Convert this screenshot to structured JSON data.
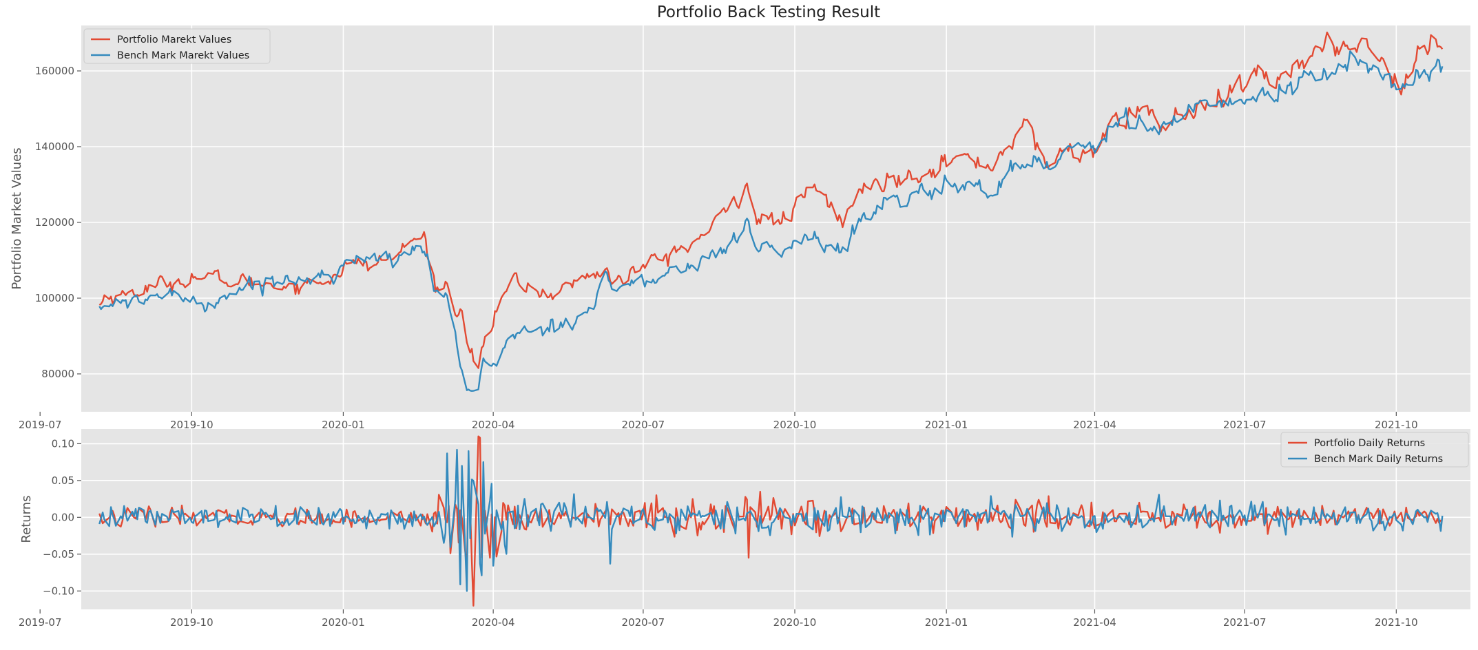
{
  "chart_data": [
    {
      "type": "line",
      "title": "Portfolio Back Testing Result",
      "xlabel": "",
      "ylabel": "Portfolio Market Values",
      "x_range": [
        "2019-08-06",
        "2021-10-29"
      ],
      "ylim": [
        70000,
        172000
      ],
      "x_ticks": [
        "2019-07",
        "2019-10",
        "2020-01",
        "2020-04",
        "2020-07",
        "2020-10",
        "2021-01",
        "2021-04",
        "2021-07",
        "2021-10"
      ],
      "y_ticks": [
        80000,
        100000,
        120000,
        140000,
        160000
      ],
      "grid": true,
      "legend_position": "top-left",
      "colors": [
        "#E24A33",
        "#348ABD"
      ],
      "series": [
        {
          "name": "Portfolio Marekt Values",
          "keypoints": [
            [
              "2019-08-06",
              98000
            ],
            [
              "2019-08-10",
              101000
            ],
            [
              "2019-08-20",
              100500
            ],
            [
              "2019-09-01",
              102500
            ],
            [
              "2019-09-15",
              103500
            ],
            [
              "2019-10-01",
              106000
            ],
            [
              "2019-10-20",
              104500
            ],
            [
              "2019-11-10",
              104000
            ],
            [
              "2019-12-01",
              103500
            ],
            [
              "2019-12-20",
              104500
            ],
            [
              "2020-01-02",
              108500
            ],
            [
              "2020-01-20",
              109000
            ],
            [
              "2020-02-01",
              111000
            ],
            [
              "2020-02-12",
              115000
            ],
            [
              "2020-02-19",
              116500
            ],
            [
              "2020-02-25",
              104000
            ],
            [
              "2020-03-05",
              103000
            ],
            [
              "2020-03-09",
              95000
            ],
            [
              "2020-03-13",
              99000
            ],
            [
              "2020-03-16",
              90000
            ],
            [
              "2020-03-20",
              84000
            ],
            [
              "2020-03-23",
              82000
            ],
            [
              "2020-03-27",
              90000
            ],
            [
              "2020-04-01",
              93000
            ],
            [
              "2020-04-05",
              99000
            ],
            [
              "2020-04-15",
              105000
            ],
            [
              "2020-04-25",
              102000
            ],
            [
              "2020-05-05",
              101000
            ],
            [
              "2020-05-20",
              104000
            ],
            [
              "2020-06-08",
              108000
            ],
            [
              "2020-06-12",
              104000
            ],
            [
              "2020-06-25",
              107000
            ],
            [
              "2020-07-10",
              110000
            ],
            [
              "2020-07-25",
              113000
            ],
            [
              "2020-08-05",
              116000
            ],
            [
              "2020-08-20",
              122000
            ],
            [
              "2020-09-02",
              131000
            ],
            [
              "2020-09-08",
              121000
            ],
            [
              "2020-09-23",
              120000
            ],
            [
              "2020-10-02",
              124000
            ],
            [
              "2020-10-12",
              129000
            ],
            [
              "2020-10-20",
              126000
            ],
            [
              "2020-10-30",
              120000
            ],
            [
              "2020-11-09",
              128000
            ],
            [
              "2020-11-25",
              131000
            ],
            [
              "2020-12-10",
              133000
            ],
            [
              "2021-01-05",
              137000
            ],
            [
              "2021-01-27",
              135000
            ],
            [
              "2021-02-10",
              142000
            ],
            [
              "2021-02-16",
              146000
            ],
            [
              "2021-03-04",
              135000
            ],
            [
              "2021-03-15",
              139000
            ],
            [
              "2021-03-25",
              138000
            ],
            [
              "2021-04-10",
              144000
            ],
            [
              "2021-04-30",
              151000
            ],
            [
              "2021-05-12",
              145000
            ],
            [
              "2021-05-25",
              149000
            ],
            [
              "2021-06-10",
              150000
            ],
            [
              "2021-06-25",
              154000
            ],
            [
              "2021-07-10",
              159000
            ],
            [
              "2021-07-19",
              156000
            ],
            [
              "2021-08-01",
              163000
            ],
            [
              "2021-08-15",
              164000
            ],
            [
              "2021-09-02",
              168000
            ],
            [
              "2021-09-15",
              167000
            ],
            [
              "2021-09-30",
              158000
            ],
            [
              "2021-10-04",
              157000
            ],
            [
              "2021-10-15",
              164000
            ],
            [
              "2021-10-29",
              168500
            ]
          ]
        },
        {
          "name": "Bench Mark Marekt Values",
          "keypoints": [
            [
              "2019-08-06",
              97000
            ],
            [
              "2019-08-12",
              99000
            ],
            [
              "2019-08-25",
              98000
            ],
            [
              "2019-09-10",
              101000
            ],
            [
              "2019-10-01",
              100000
            ],
            [
              "2019-10-08",
              98000
            ],
            [
              "2019-10-25",
              101500
            ],
            [
              "2019-11-15",
              104500
            ],
            [
              "2019-12-05",
              105000
            ],
            [
              "2019-12-25",
              107000
            ],
            [
              "2020-01-02",
              109000
            ],
            [
              "2020-01-20",
              110000
            ],
            [
              "2020-02-01",
              110500
            ],
            [
              "2020-02-12",
              113500
            ],
            [
              "2020-02-19",
              114000
            ],
            [
              "2020-02-25",
              102000
            ],
            [
              "2020-03-03",
              101000
            ],
            [
              "2020-03-09",
              90000
            ],
            [
              "2020-03-12",
              83000
            ],
            [
              "2020-03-16",
              77000
            ],
            [
              "2020-03-20",
              75500
            ],
            [
              "2020-03-23",
              75000
            ],
            [
              "2020-03-26",
              83000
            ],
            [
              "2020-04-01",
              81500
            ],
            [
              "2020-04-09",
              89000
            ],
            [
              "2020-04-20",
              91000
            ],
            [
              "2020-05-01",
              92000
            ],
            [
              "2020-05-15",
              94000
            ],
            [
              "2020-06-01",
              98000
            ],
            [
              "2020-06-08",
              107000
            ],
            [
              "2020-06-12",
              103000
            ],
            [
              "2020-06-26",
              103500
            ],
            [
              "2020-07-15",
              106000
            ],
            [
              "2020-08-01",
              109000
            ],
            [
              "2020-08-20",
              113000
            ],
            [
              "2020-09-02",
              119000
            ],
            [
              "2020-09-10",
              113000
            ],
            [
              "2020-09-23",
              112000
            ],
            [
              "2020-10-09",
              117000
            ],
            [
              "2020-10-28",
              113000
            ],
            [
              "2020-11-02",
              112500
            ],
            [
              "2020-11-09",
              120000
            ],
            [
              "2020-11-30",
              126000
            ],
            [
              "2020-12-20",
              128000
            ],
            [
              "2021-01-15",
              130000
            ],
            [
              "2021-01-29",
              128000
            ],
            [
              "2021-02-12",
              136000
            ],
            [
              "2021-03-04",
              135000
            ],
            [
              "2021-03-15",
              139000
            ],
            [
              "2021-04-01",
              142000
            ],
            [
              "2021-04-20",
              147000
            ],
            [
              "2021-05-12",
              145000
            ],
            [
              "2021-06-01",
              149000
            ],
            [
              "2021-06-20",
              151000
            ],
            [
              "2021-07-10",
              155000
            ],
            [
              "2021-07-19",
              152000
            ],
            [
              "2021-08-01",
              157000
            ],
            [
              "2021-08-20",
              159000
            ],
            [
              "2021-09-02",
              163000
            ],
            [
              "2021-09-20",
              159000
            ],
            [
              "2021-09-30",
              156000
            ],
            [
              "2021-10-04",
              155000
            ],
            [
              "2021-10-15",
              159000
            ],
            [
              "2021-10-29",
              162500
            ]
          ]
        }
      ]
    },
    {
      "type": "line",
      "title": "",
      "xlabel": "",
      "ylabel": "Returns",
      "x_range": [
        "2019-08-06",
        "2021-10-29"
      ],
      "ylim": [
        -0.125,
        0.12
      ],
      "x_ticks": [
        "2019-07",
        "2019-10",
        "2020-01",
        "2020-04",
        "2020-07",
        "2020-10",
        "2021-01",
        "2021-04",
        "2021-07",
        "2021-10"
      ],
      "y_ticks": [
        0.1,
        0.05,
        0.0,
        -0.05,
        -0.1
      ],
      "y_tick_labels": [
        "0.10",
        "0.05",
        "0.00",
        "−0.05",
        "−0.10"
      ],
      "grid": true,
      "legend_position": "top-right",
      "colors": [
        "#E24A33",
        "#348ABD"
      ],
      "series": [
        {
          "name": "Portfolio Daily Returns",
          "volatility": [
            [
              "2019-08-06",
              0.012
            ],
            [
              "2020-02-20",
              0.01
            ],
            [
              "2020-02-28",
              0.04
            ],
            [
              "2020-03-12",
              0.085
            ],
            [
              "2020-03-20",
              0.09
            ],
            [
              "2020-04-05",
              0.04
            ],
            [
              "2020-05-01",
              0.018
            ],
            [
              "2020-09-01",
              0.022
            ],
            [
              "2020-11-15",
              0.02
            ],
            [
              "2021-03-01",
              0.018
            ],
            [
              "2021-10-29",
              0.012
            ]
          ],
          "extremes": [
            [
              "2020-03-20",
              -0.12
            ],
            [
              "2020-03-23",
              0.11
            ],
            [
              "2020-03-24",
              0.108
            ],
            [
              "2020-03-16",
              -0.07
            ],
            [
              "2020-09-03",
              -0.055
            ],
            [
              "2020-03-30",
              -0.055
            ]
          ]
        },
        {
          "name": "Bench Mark Daily Returns",
          "volatility": [
            [
              "2019-08-06",
              0.012
            ],
            [
              "2020-02-20",
              0.012
            ],
            [
              "2020-02-28",
              0.045
            ],
            [
              "2020-03-12",
              0.09
            ],
            [
              "2020-03-20",
              0.095
            ],
            [
              "2020-04-05",
              0.045
            ],
            [
              "2020-05-01",
              0.02
            ],
            [
              "2020-09-01",
              0.02
            ],
            [
              "2020-11-15",
              0.018
            ],
            [
              "2021-03-01",
              0.016
            ],
            [
              "2021-10-29",
              0.012
            ]
          ],
          "extremes": [
            [
              "2020-03-16",
              -0.1
            ],
            [
              "2020-03-17",
              0.09
            ],
            [
              "2020-03-13",
              0.07
            ],
            [
              "2020-06-11",
              -0.063
            ],
            [
              "2020-03-26",
              0.075
            ]
          ]
        }
      ]
    }
  ]
}
